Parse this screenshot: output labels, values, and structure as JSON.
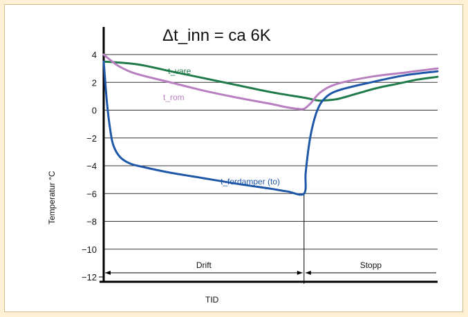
{
  "chart_data": {
    "type": "line",
    "title": "Δt_inn = ca 6K",
    "xlabel": "TID",
    "ylabel": "Temperatur °C",
    "ylim": [
      -12,
      5
    ],
    "xlim": [
      0,
      100
    ],
    "yticks": [
      4,
      2,
      0,
      -2,
      -4,
      -6,
      -8,
      -10,
      -12
    ],
    "tick_labels": [
      "4",
      "2",
      "0",
      "−2",
      "−4",
      "−6",
      "−8",
      "−10",
      "−12"
    ],
    "grid": true,
    "series": [
      {
        "name": "t_vare",
        "color": "#1f7a4a",
        "x": [
          0,
          10,
          20,
          30,
          40,
          50,
          60,
          64,
          66,
          70,
          76,
          82,
          88,
          94,
          100
        ],
        "y": [
          3.5,
          3.3,
          2.8,
          2.3,
          1.8,
          1.3,
          0.9,
          0.7,
          0.7,
          0.8,
          1.2,
          1.6,
          1.9,
          2.2,
          2.4
        ]
      },
      {
        "name": "t_rom",
        "color": "#b77fbf",
        "x": [
          0,
          2,
          5,
          10,
          20,
          30,
          40,
          50,
          55,
          58,
          60,
          62,
          65,
          70,
          80,
          90,
          100
        ],
        "y": [
          4.0,
          3.6,
          3.1,
          2.6,
          2.0,
          1.4,
          0.9,
          0.45,
          0.2,
          0.1,
          0.1,
          0.5,
          1.3,
          1.9,
          2.4,
          2.7,
          3.0
        ]
      },
      {
        "name": "t_fordamper (to)",
        "color": "#1e56a8",
        "x": [
          0,
          1,
          2,
          3,
          5,
          8,
          12,
          20,
          30,
          40,
          50,
          55,
          60,
          60.5,
          61.5,
          62.5,
          64,
          66,
          70,
          80,
          90,
          100
        ],
        "y": [
          3.5,
          0.5,
          -1.5,
          -2.6,
          -3.4,
          -3.85,
          -4.1,
          -4.5,
          -4.9,
          -5.3,
          -5.65,
          -5.85,
          -6.0,
          -4.5,
          -2.5,
          -1.2,
          0.0,
          0.8,
          1.4,
          2.0,
          2.5,
          2.8
        ]
      }
    ],
    "phases": [
      {
        "label": "Drift",
        "from": 0,
        "to": 60
      },
      {
        "label": "Stopp",
        "from": 60,
        "to": 100
      }
    ]
  }
}
